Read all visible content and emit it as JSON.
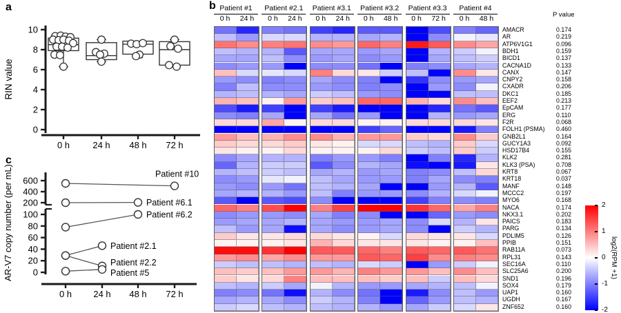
{
  "figure": {
    "panel_a_label": "a",
    "panel_b_label": "b",
    "panel_c_label": "c"
  },
  "chart_data": [
    {
      "id": "rin_boxplot",
      "type": "box",
      "panel": "a",
      "ylabel": "RIN value",
      "categories": [
        "0 h",
        "24 h",
        "48 h",
        "72 h"
      ],
      "yticks": [
        0,
        2,
        4,
        6,
        8,
        10
      ],
      "ylim": [
        0,
        10
      ],
      "boxes": [
        {
          "category": "0 h",
          "q1": 7.9,
          "median": 8.5,
          "q3": 9.15,
          "whisker_low": 6.3,
          "whisker_high": null,
          "points": [
            9.35,
            9.4,
            9.3,
            9.25,
            9.0,
            8.95,
            9.0,
            8.9,
            8.65,
            8.3,
            8.3,
            8.2,
            7.5,
            7.45,
            6.3
          ]
        },
        {
          "category": "24 h",
          "q1": 7.0,
          "median": 7.4,
          "q3": 8.7,
          "whisker_low": 6.8,
          "whisker_high": 9.0,
          "points": [
            9.0,
            7.75,
            7.6,
            7.5,
            6.8
          ]
        },
        {
          "category": "48 h",
          "q1": 7.55,
          "median": 8.55,
          "q3": 8.85,
          "whisker_low": 7.2,
          "whisker_high": null,
          "points": [
            8.6,
            8.55,
            8.65,
            7.5,
            7.35
          ]
        },
        {
          "category": "72 h",
          "q1": 6.45,
          "median": 8.0,
          "q3": 8.8,
          "whisker_low": null,
          "whisker_high": 9.0,
          "points": [
            9.0,
            8.35,
            8.1,
            6.45,
            6.3
          ]
        }
      ]
    },
    {
      "id": "expression_heatmap",
      "type": "heatmap",
      "panel": "b",
      "pvalue_header": "P value",
      "patients": [
        {
          "name": "Patient #1",
          "timepoints": [
            "0 h",
            "24 h"
          ]
        },
        {
          "name": "Patient #2.1",
          "timepoints": [
            "0 h",
            "24 h"
          ]
        },
        {
          "name": "Patient #3.1",
          "timepoints": [
            "0 h",
            "24 h"
          ]
        },
        {
          "name": "Patient #3.2",
          "timepoints": [
            "0 h",
            "48 h"
          ]
        },
        {
          "name": "Patient #3.3",
          "timepoints": [
            "0 h",
            "72 h"
          ]
        },
        {
          "name": "Patient #4",
          "timepoints": [
            "0 h",
            "48 h"
          ]
        }
      ],
      "genes": [
        "AMACR",
        "AR",
        "ATP6V1G1",
        "BDH1",
        "BICD1",
        "CACNA1D",
        "CANX",
        "CNPY2",
        "CXADR",
        "DKC1",
        "EEF2",
        "EpCAM",
        "ERG",
        "F2R",
        "FOLH1 (PSMA)",
        "GNB2L1",
        "GUCY1A3",
        "HSD17B4",
        "KLK2",
        "KLK3 (PSA)",
        "KRT8",
        "KRT18",
        "MANF",
        "MCCC2",
        "MYO6",
        "NACA",
        "NKX3.1",
        "PAICS",
        "PARG",
        "PDLIM5",
        "PPIB",
        "RAB11A",
        "RPL31",
        "SEC16A",
        "SLC25A6",
        "SND1",
        "SOX4",
        "UAP1",
        "UGDH",
        "ZNF652"
      ],
      "p_values": [
        "0.174",
        "0.219",
        "0.096",
        "0.159",
        "0.137",
        "0.133",
        "0.147",
        "0.158",
        "0.206",
        "0.185",
        "0.213",
        "0.177",
        "0.110",
        "0.068",
        "0.460",
        "0.164",
        "0.092",
        "0.155",
        "0.281",
        "0.708",
        "0.067",
        "0.037",
        "0.148",
        "0.197",
        "0.168",
        "0.174",
        "0.202",
        "0.183",
        "0.134",
        "0.126",
        "0.151",
        "0.073",
        "0.143",
        "0.110",
        "0.200",
        "0.196",
        "0.179",
        "0.160",
        "0.167",
        "0.160"
      ],
      "values": [
        [
          -1.1,
          -1.7,
          -1.0,
          -1.1,
          -1.5,
          -1.7,
          -1.3,
          -1.3,
          -2.0,
          -1.4,
          -1.0,
          -1.2
        ],
        [
          -0.5,
          -0.8,
          -0.3,
          -0.3,
          -0.6,
          -0.6,
          -0.7,
          -0.6,
          -2.0,
          -0.9,
          -0.1,
          -0.2
        ],
        [
          1.1,
          0.9,
          1.0,
          1.1,
          0.9,
          0.8,
          1.2,
          1.0,
          1.8,
          1.3,
          0.9,
          0.7
        ],
        [
          -0.5,
          -0.6,
          -0.6,
          -1.3,
          -0.7,
          -0.7,
          -0.8,
          -0.7,
          -2.0,
          -0.6,
          -0.4,
          -0.1
        ],
        [
          -0.7,
          -0.7,
          -0.5,
          -0.9,
          -0.8,
          -0.7,
          -0.9,
          -0.8,
          -2.0,
          -0.7,
          -0.5,
          -0.4
        ],
        [
          -0.9,
          -0.8,
          -0.8,
          -2.0,
          -0.9,
          -0.9,
          -1.1,
          -2.0,
          -1.0,
          -0.9,
          -0.7,
          -0.6
        ],
        [
          0.5,
          -0.3,
          -0.2,
          -0.3,
          1.0,
          0.3,
          0.2,
          -0.4,
          -0.5,
          -2.0,
          0.9,
          0.2
        ],
        [
          -0.8,
          -0.9,
          -1.0,
          -0.9,
          -0.7,
          -0.9,
          -1.0,
          -2.0,
          -1.6,
          -0.9,
          -0.8,
          -0.7
        ],
        [
          -1.0,
          -0.5,
          -0.9,
          -0.9,
          -0.8,
          -0.9,
          -1.0,
          -0.9,
          -2.0,
          -0.8,
          -0.9,
          -0.1
        ],
        [
          -0.6,
          -0.5,
          -0.6,
          -0.7,
          -0.4,
          -0.5,
          -0.8,
          -0.9,
          -2.0,
          -2.0,
          -0.5,
          -0.5
        ],
        [
          0.6,
          0.5,
          0.1,
          0.8,
          0.4,
          0.5,
          1.2,
          1.2,
          0.6,
          0.3,
          0.9,
          0.5
        ],
        [
          -1.4,
          -1.8,
          -1.5,
          -2.0,
          -1.5,
          -1.8,
          -2.0,
          -2.0,
          -2.0,
          -1.7,
          -1.1,
          -1.3
        ],
        [
          -0.9,
          -1.0,
          -0.7,
          -2.0,
          -0.7,
          -1.1,
          -0.8,
          -2.0,
          -2.0,
          -0.6,
          -0.8,
          -0.7
        ],
        [
          0.3,
          0.3,
          0.7,
          0.1,
          0.3,
          0.3,
          0.1,
          0.1,
          0.3,
          0.3,
          0.3,
          0.2
        ],
        [
          -2.0,
          -2.0,
          -2.0,
          -2.0,
          -2.0,
          -2.0,
          -1.5,
          -1.2,
          -2.0,
          -2.0,
          -1.8,
          -1.0
        ],
        [
          0.8,
          0.5,
          0.6,
          0.9,
          0.9,
          0.6,
          0.8,
          0.8,
          0.4,
          0.3,
          0.9,
          0.4
        ],
        [
          0.4,
          0.3,
          0.3,
          0.4,
          0.2,
          0.1,
          -0.3,
          -0.3,
          -0.5,
          -0.6,
          0.4,
          -0.3
        ],
        [
          0.2,
          0.1,
          0.1,
          0.3,
          0.1,
          0.1,
          0.1,
          0.3,
          -0.4,
          -0.5,
          0.4,
          -0.4
        ],
        [
          -0.9,
          -0.7,
          -0.6,
          -0.6,
          -1.0,
          -0.8,
          -0.8,
          -1.0,
          -2.0,
          -1.0,
          -1.7,
          -0.6
        ],
        [
          -1.2,
          -0.6,
          -0.4,
          -0.4,
          -1.3,
          -0.9,
          -0.6,
          -0.7,
          -1.9,
          -2.0,
          -1.8,
          0.2
        ],
        [
          -0.6,
          -0.5,
          -0.4,
          -0.5,
          -0.7,
          -0.6,
          -0.8,
          -0.7,
          -1.0,
          -0.9,
          -0.5,
          0.3
        ],
        [
          -0.9,
          -0.8,
          -0.2,
          -0.1,
          -0.5,
          -0.7,
          -0.8,
          -0.8,
          -1.0,
          -0.7,
          -0.9,
          -1.0
        ],
        [
          -0.8,
          -0.9,
          -0.8,
          -1.1,
          -0.5,
          -0.6,
          -0.7,
          -2.0,
          -2.0,
          -0.8,
          -0.6,
          -1.3
        ],
        [
          -0.7,
          -0.6,
          -0.6,
          -0.8,
          -0.5,
          -1.0,
          -0.8,
          -0.8,
          -0.9,
          -0.6,
          -0.3,
          -0.1
        ],
        [
          -1.3,
          -2.0,
          -1.3,
          -1.4,
          -0.9,
          -2.0,
          -2.0,
          -2.0,
          -1.5,
          -1.0,
          -0.9,
          -1.0
        ],
        [
          1.2,
          1.0,
          1.4,
          2.0,
          1.0,
          1.5,
          2.0,
          2.0,
          1.6,
          1.2,
          0.7,
          1.0
        ],
        [
          -0.9,
          -0.8,
          -0.8,
          -0.9,
          -0.7,
          -1.0,
          -0.9,
          -2.0,
          -2.0,
          -1.2,
          -0.8,
          -0.9
        ],
        [
          -0.8,
          -0.7,
          -0.7,
          -0.6,
          -0.7,
          -0.8,
          -0.8,
          -0.7,
          -0.9,
          -0.3,
          -0.6,
          0.2
        ],
        [
          -0.5,
          -0.8,
          -0.7,
          -1.9,
          -0.7,
          -0.9,
          -0.8,
          -0.7,
          -0.9,
          -2.0,
          -0.4,
          -0.6
        ],
        [
          0.4,
          0.2,
          0.2,
          0.3,
          0.3,
          0.2,
          0.1,
          -0.3,
          0.3,
          0.2,
          0.2,
          -0.3
        ],
        [
          0.1,
          0.1,
          0.1,
          0.2,
          0.6,
          0.3,
          0.2,
          0.2,
          0.2,
          0.1,
          0.1,
          0.5
        ],
        [
          1.9,
          1.9,
          1.6,
          2.0,
          1.3,
          1.3,
          1.2,
          1.0,
          1.3,
          1.2,
          1.3,
          1.1
        ],
        [
          0.8,
          0.9,
          0.7,
          0.9,
          0.8,
          0.8,
          1.3,
          1.2,
          1.5,
          0.9,
          1.0,
          0.9
        ],
        [
          -0.4,
          -0.5,
          -0.5,
          -0.6,
          -0.5,
          -0.6,
          -0.3,
          -0.4,
          -2.0,
          -0.8,
          -0.4,
          -0.1
        ],
        [
          0.5,
          0.4,
          0.5,
          0.8,
          0.8,
          0.6,
          1.0,
          0.8,
          0.8,
          0.5,
          0.9,
          0.5
        ],
        [
          0.4,
          0.2,
          0.3,
          1.0,
          0.5,
          0.5,
          0.5,
          0.4,
          0.5,
          -0.4,
          0.5,
          0.3
        ],
        [
          -0.5,
          -0.6,
          -0.4,
          -0.7,
          -0.1,
          -0.6,
          -0.8,
          -0.8,
          -0.7,
          -0.6,
          -0.5,
          -0.1
        ],
        [
          -1.0,
          -0.9,
          -1.1,
          -1.9,
          -0.6,
          -0.9,
          -1.1,
          -2.0,
          -1.8,
          -0.9,
          -0.5,
          -0.8
        ],
        [
          -0.7,
          -0.6,
          -0.7,
          -0.9,
          -0.4,
          -0.6,
          -1.0,
          -2.0,
          -1.2,
          -0.8,
          -0.5,
          -0.6
        ],
        [
          -0.4,
          -0.3,
          -0.5,
          -0.6,
          -0.5,
          -0.6,
          -0.6,
          -0.8,
          -0.7,
          -0.4,
          -0.3,
          0.2
        ]
      ],
      "colorbar": {
        "label": "log2(RPM +1)",
        "ticks": [
          2,
          1,
          0,
          -1,
          -2
        ],
        "range": [
          -2,
          2
        ],
        "top_color": "#ff0000",
        "mid_color": "#ffffff",
        "bottom_color": "#0000ff"
      }
    },
    {
      "id": "arv7_copy_number",
      "type": "line",
      "panel": "c",
      "ylabel": "AR-V7 copy number (per mL)",
      "categories": [
        "0 h",
        "24 h",
        "48 h",
        "72 h"
      ],
      "axis_break": true,
      "upper_ticks": [
        600,
        400,
        200
      ],
      "lower_ticks": [
        100,
        80,
        60,
        40,
        20,
        0
      ],
      "series": [
        {
          "name": "Patient #10",
          "points": [
            {
              "x": "0 h",
              "y": 550
            },
            {
              "x": "72 h",
              "y": 505
            }
          ]
        },
        {
          "name": "Patient #6.1",
          "points": [
            {
              "x": "0 h",
              "y": 200
            },
            {
              "x": "48 h",
              "y": 205
            }
          ]
        },
        {
          "name": "Patient #6.2",
          "points": [
            {
              "x": "0 h",
              "y": 78
            },
            {
              "x": "48 h",
              "y": 100
            }
          ]
        },
        {
          "name": "Patient #2.1",
          "points": [
            {
              "x": "0 h",
              "y": 29
            },
            {
              "x": "24 h",
              "y": 46
            }
          ]
        },
        {
          "name": "Patient #2.2",
          "points": [
            {
              "x": "0 h",
              "y": 29
            },
            {
              "x": "24 h",
              "y": 11
            }
          ]
        },
        {
          "name": "Patient #5",
          "points": [
            {
              "x": "0 h",
              "y": 2
            },
            {
              "x": "24 h",
              "y": 5
            }
          ]
        }
      ]
    }
  ]
}
